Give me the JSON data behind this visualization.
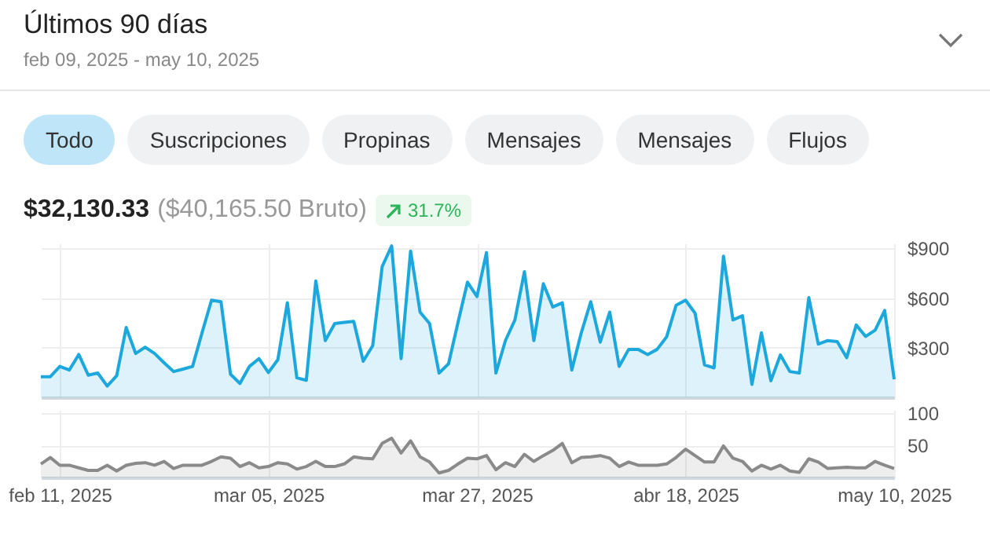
{
  "chart_data": [
    {
      "type": "area",
      "title": "Últimos 90 días",
      "subtitle": "feb 09, 2025 - may 10, 2025",
      "annotations": [
        "Todo",
        "Suscripciones",
        "Propinas",
        "Mensajes",
        "Mensajes",
        "Flujos",
        "$32,130.33",
        "($40,165.50 Bruto)",
        "31.7%"
      ],
      "x": [
        "2025-02-09",
        "2025-02-10",
        "2025-02-11",
        "2025-02-12",
        "2025-02-13",
        "2025-02-14",
        "2025-02-15",
        "2025-02-16",
        "2025-02-17",
        "2025-02-18",
        "2025-02-19",
        "2025-02-20",
        "2025-02-21",
        "2025-02-22",
        "2025-02-23",
        "2025-02-24",
        "2025-02-25",
        "2025-02-26",
        "2025-02-27",
        "2025-02-28",
        "2025-03-01",
        "2025-03-02",
        "2025-03-03",
        "2025-03-04",
        "2025-03-05",
        "2025-03-06",
        "2025-03-07",
        "2025-03-08",
        "2025-03-09",
        "2025-03-10",
        "2025-03-11",
        "2025-03-12",
        "2025-03-13",
        "2025-03-14",
        "2025-03-15",
        "2025-03-16",
        "2025-03-17",
        "2025-03-18",
        "2025-03-19",
        "2025-03-20",
        "2025-03-21",
        "2025-03-22",
        "2025-03-23",
        "2025-03-24",
        "2025-03-25",
        "2025-03-26",
        "2025-03-27",
        "2025-03-28",
        "2025-03-29",
        "2025-03-30",
        "2025-03-31",
        "2025-04-01",
        "2025-04-02",
        "2025-04-03",
        "2025-04-04",
        "2025-04-05",
        "2025-04-06",
        "2025-04-07",
        "2025-04-08",
        "2025-04-09",
        "2025-04-10",
        "2025-04-11",
        "2025-04-12",
        "2025-04-13",
        "2025-04-14",
        "2025-04-15",
        "2025-04-16",
        "2025-04-17",
        "2025-04-18",
        "2025-04-19",
        "2025-04-20",
        "2025-04-21",
        "2025-04-22",
        "2025-04-23",
        "2025-04-24",
        "2025-04-25",
        "2025-04-26",
        "2025-04-27",
        "2025-04-28",
        "2025-04-29",
        "2025-04-30",
        "2025-05-01",
        "2025-05-02",
        "2025-05-03",
        "2025-05-04",
        "2025-05-05",
        "2025-05-06",
        "2025-05-07",
        "2025-05-08",
        "2025-05-09",
        "2025-05-10"
      ],
      "series": [
        {
          "color": "#1ca8dd",
          "values": [
            125,
            125,
            187,
            165,
            259,
            134,
            147,
            68,
            131,
            422,
            265,
            303,
            265,
            209,
            156,
            171,
            187,
            390,
            587,
            578,
            140,
            84,
            187,
            234,
            150,
            228,
            572,
            118,
            103,
            703,
            343,
            446,
            453,
            459,
            218,
            312,
            790,
            915,
            234,
            884,
            515,
            446,
            147,
            203,
            453,
            696,
            609,
            875,
            147,
            343,
            468,
            759,
            343,
            687,
            546,
            571,
            165,
            390,
            578,
            334,
            515,
            187,
            290,
            290,
            259,
            290,
            365,
            556,
            587,
            509,
            196,
            178,
            853,
            468,
            493,
            78,
            390,
            100,
            256,
            156,
            147,
            603,
            322,
            343,
            337,
            240,
            437,
            368,
            406,
            525,
            109
          ]
        }
      ],
      "xlim": [
        "2025-02-09",
        "2025-05-10"
      ],
      "xticks": [
        "2025-02-11",
        "2025-03-05",
        "2025-03-27",
        "2025-04-18",
        "2025-05-10"
      ],
      "ylim": [
        0,
        930
      ],
      "yticks": [
        {
          "value": 300,
          "label": "$300"
        },
        {
          "value": 600,
          "label": "$600"
        },
        {
          "value": 900,
          "label": "$900"
        }
      ],
      "grid": true,
      "tick_labels": "y"
    },
    {
      "type": "area",
      "x": [
        "2025-02-09",
        "2025-02-10",
        "2025-02-11",
        "2025-02-12",
        "2025-02-13",
        "2025-02-14",
        "2025-02-15",
        "2025-02-16",
        "2025-02-17",
        "2025-02-18",
        "2025-02-19",
        "2025-02-20",
        "2025-02-21",
        "2025-02-22",
        "2025-02-23",
        "2025-02-24",
        "2025-02-25",
        "2025-02-26",
        "2025-02-27",
        "2025-02-28",
        "2025-03-01",
        "2025-03-02",
        "2025-03-03",
        "2025-03-04",
        "2025-03-05",
        "2025-03-06",
        "2025-03-07",
        "2025-03-08",
        "2025-03-09",
        "2025-03-10",
        "2025-03-11",
        "2025-03-12",
        "2025-03-13",
        "2025-03-14",
        "2025-03-15",
        "2025-03-16",
        "2025-03-17",
        "2025-03-18",
        "2025-03-19",
        "2025-03-20",
        "2025-03-21",
        "2025-03-22",
        "2025-03-23",
        "2025-03-24",
        "2025-03-25",
        "2025-03-26",
        "2025-03-27",
        "2025-03-28",
        "2025-03-29",
        "2025-03-30",
        "2025-03-31",
        "2025-04-01",
        "2025-04-02",
        "2025-04-03",
        "2025-04-04",
        "2025-04-05",
        "2025-04-06",
        "2025-04-07",
        "2025-04-08",
        "2025-04-09",
        "2025-04-10",
        "2025-04-11",
        "2025-04-12",
        "2025-04-13",
        "2025-04-14",
        "2025-04-15",
        "2025-04-16",
        "2025-04-17",
        "2025-04-18",
        "2025-04-19",
        "2025-04-20",
        "2025-04-21",
        "2025-04-22",
        "2025-04-23",
        "2025-04-24",
        "2025-04-25",
        "2025-04-26",
        "2025-04-27",
        "2025-04-28",
        "2025-04-29",
        "2025-04-30",
        "2025-05-01",
        "2025-05-02",
        "2025-05-03",
        "2025-05-04",
        "2025-05-05",
        "2025-05-06",
        "2025-05-07",
        "2025-05-08",
        "2025-05-09",
        "2025-05-10"
      ],
      "series": [
        {
          "color": "#8a8a8a",
          "values": [
            21,
            31,
            19,
            19,
            15,
            11,
            11,
            19,
            10,
            19,
            22,
            23,
            19,
            25,
            14,
            19,
            19,
            19,
            25,
            32,
            30,
            17,
            23,
            15,
            17,
            23,
            21,
            13,
            17,
            25,
            17,
            17,
            21,
            32,
            30,
            29,
            53,
            61,
            38,
            57,
            32,
            24,
            7,
            11,
            21,
            30,
            29,
            34,
            12,
            23,
            17,
            36,
            25,
            34,
            42,
            53,
            23,
            31,
            32,
            34,
            30,
            17,
            24,
            19,
            19,
            19,
            21,
            31,
            44,
            34,
            24,
            24,
            49,
            30,
            25,
            10,
            19,
            13,
            19,
            10,
            8,
            29,
            24,
            14,
            15,
            16,
            15,
            15,
            25,
            19,
            14
          ]
        }
      ],
      "xlim": [
        "2025-02-09",
        "2025-05-10"
      ],
      "xticks": [
        {
          "value": "2025-02-11",
          "label": "feb 11, 2025"
        },
        {
          "value": "2025-03-05",
          "label": "mar 05, 2025"
        },
        {
          "value": "2025-03-27",
          "label": "mar 27, 2025"
        },
        {
          "value": "2025-04-18",
          "label": "abr 18, 2025"
        },
        {
          "value": "2025-05-10",
          "label": "may 10, 2025"
        }
      ],
      "ylim": [
        0,
        105
      ],
      "yticks": [
        50,
        100
      ],
      "grid": true
    }
  ]
}
